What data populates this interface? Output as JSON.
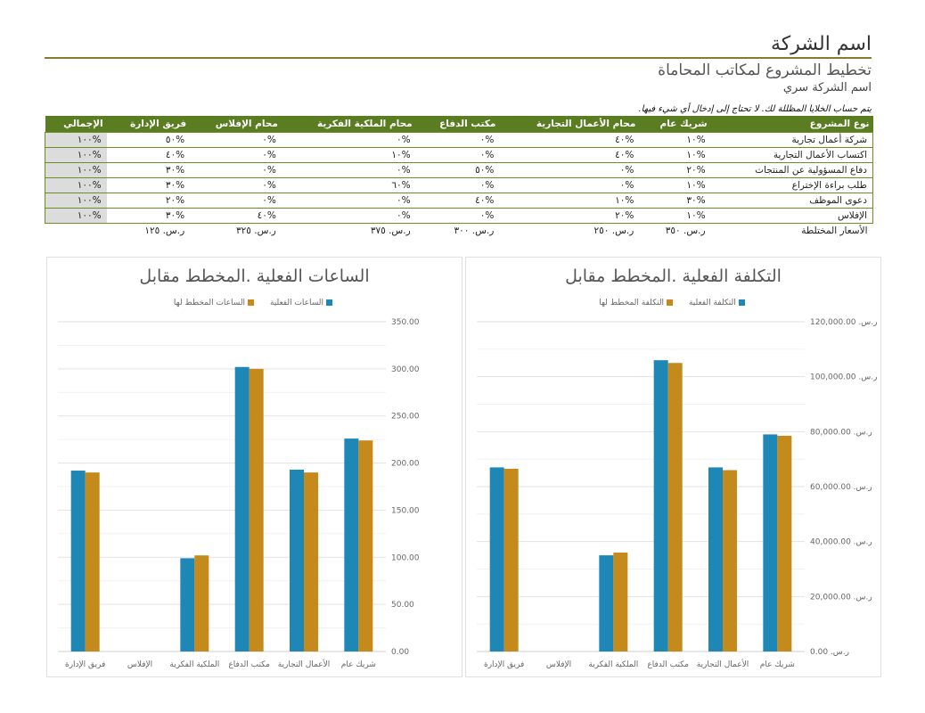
{
  "header": {
    "company_name": "اسم الشركة",
    "subtitle": "تخطيط المشروع لمكاتب المحاماة",
    "confidential": "اسم الشركة سري"
  },
  "note": "يتم حساب الخلايا المظللة لك. لا تحتاج إلى إدخال أي شيء فيها.",
  "table": {
    "headers": [
      "نوع المشروع",
      "شريك عام",
      "محام الأعمال التجارية",
      "مكتب الدفاع",
      "محام الملكية الفكرية",
      "محام الإفلاس",
      "فريق الإدارة",
      "الإجمالي"
    ],
    "rows": [
      [
        "شركة أعمال تجارية",
        "%١٠",
        "%٤٠",
        "%٠",
        "%٠",
        "%٠",
        "%٥٠",
        "%١٠٠"
      ],
      [
        "اكتساب الأعمال التجارية",
        "%١٠",
        "%٤٠",
        "%٠",
        "%١٠",
        "%٠",
        "%٤٠",
        "%١٠٠"
      ],
      [
        "دفاع المسؤولية عن المنتجات",
        "%٢٠",
        "%٠",
        "%٥٠",
        "%٠",
        "%٠",
        "%٣٠",
        "%١٠٠"
      ],
      [
        "طلب براءة الإختراع",
        "%١٠",
        "%٠",
        "%٠",
        "%٦٠",
        "%٠",
        "%٣٠",
        "%١٠٠"
      ],
      [
        "دعوى الموظف",
        "%٣٠",
        "%١٠",
        "%٤٠",
        "%٠",
        "%٠",
        "%٢٠",
        "%١٠٠"
      ],
      [
        "الإفلاس",
        "%١٠",
        "%٢٠",
        "%٠",
        "%٠",
        "%٤٠",
        "%٣٠",
        "%١٠٠"
      ]
    ],
    "rates_label": "الأسعار المختلطة",
    "rates": [
      "ر.س. ٣٥٠",
      "ر.س. ٢٥٠",
      "ر.س. ٣٠٠",
      "ر.س. ٣٧٥",
      "ر.س. ٣٢٥",
      "ر.س. ١٢٥"
    ]
  },
  "colors": {
    "actual": "#1f87b5",
    "planned": "#c48a1b",
    "header_green": "#5b7d22"
  },
  "chart_data": [
    {
      "type": "bar",
      "title": "التكلفة الفعلية .المخطط مقابل",
      "categories": [
        "شريك عام",
        "الأعمال التجارية",
        "مكتب الدفاع",
        "الملكية الفكرية",
        "الإفلاس",
        "فريق الإدارة"
      ],
      "series": [
        {
          "name": "التكلفة الفعلية",
          "values": [
            79000,
            67000,
            106000,
            35000,
            0,
            67000
          ]
        },
        {
          "name": "التكلفة المخطط لها",
          "values": [
            78500,
            66000,
            105000,
            36000,
            0,
            66500
          ]
        }
      ],
      "ylim": [
        0,
        120000
      ],
      "yticks": [
        "ر.س. 0.00",
        "ر.س. 20,000.00",
        "ر.س. 40,000.00",
        "ر.س. 60,000.00",
        "ر.س. 80,000.00",
        "ر.س. 100,000.00",
        "ر.س. 120,000.00"
      ],
      "legend": "top"
    },
    {
      "type": "bar",
      "title": "الساعات الفعلية .المخطط مقابل",
      "categories": [
        "شريك عام",
        "الأعمال التجارية",
        "مكتب الدفاع",
        "الملكية الفكرية",
        "الإفلاس",
        "فريق الإدارة"
      ],
      "series": [
        {
          "name": "الساعات الفعلية",
          "values": [
            226,
            193,
            302,
            99,
            0,
            192
          ]
        },
        {
          "name": "الساعات المخطط لها",
          "values": [
            224,
            190,
            300,
            102,
            0,
            190
          ]
        }
      ],
      "ylim": [
        0,
        350
      ],
      "yticks": [
        "0.00",
        "50.00",
        "100.00",
        "150.00",
        "200.00",
        "250.00",
        "300.00",
        "350.00"
      ],
      "legend": "top"
    }
  ]
}
